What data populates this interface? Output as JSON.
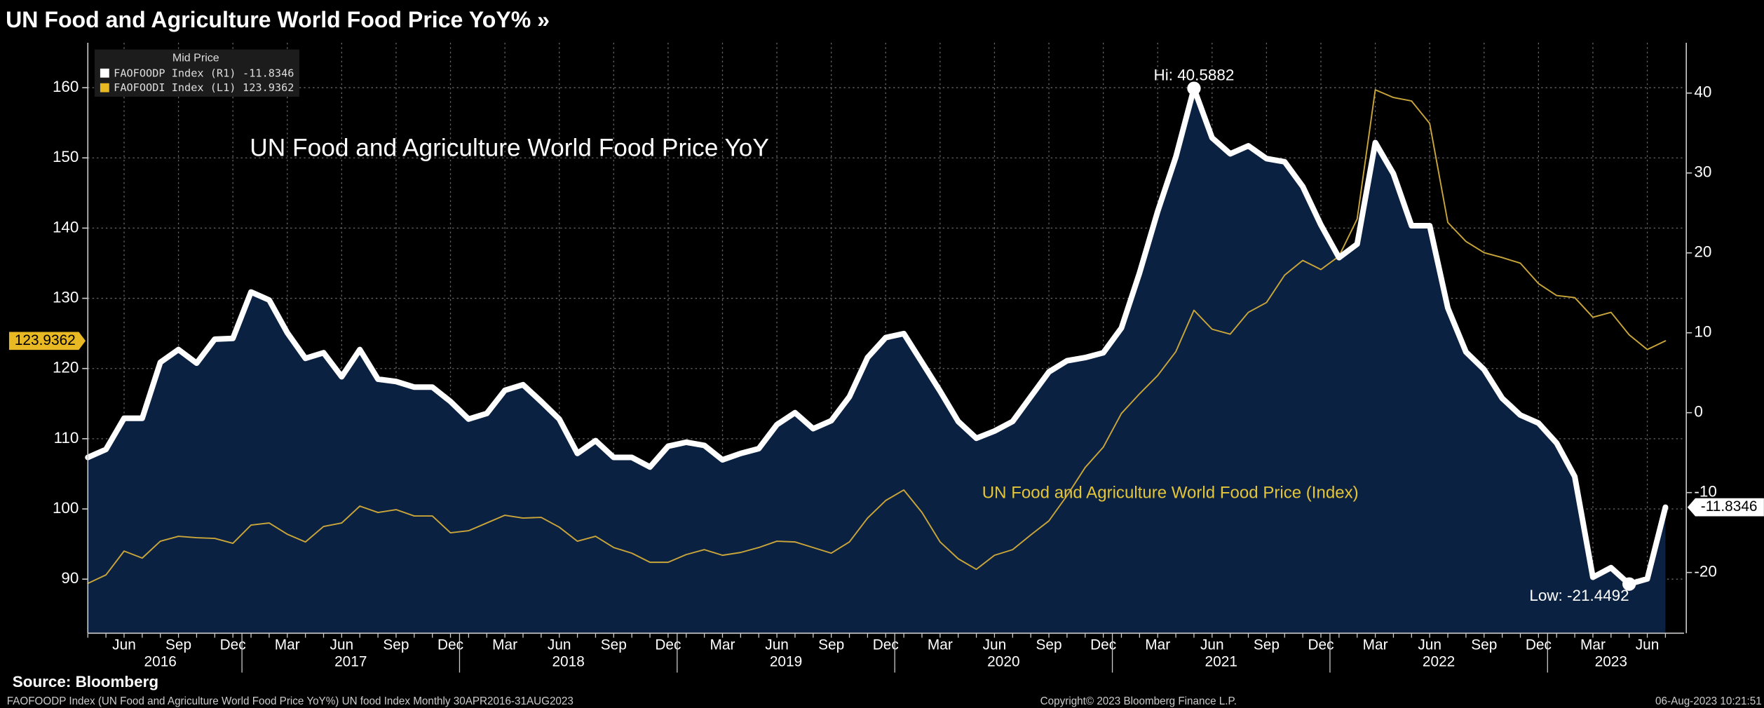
{
  "chart_data": {
    "type": "line",
    "title": "UN Food and Agriculture World Food Price YoY% »",
    "legend_title": "Mid Price",
    "annotations": {
      "main": "UN Food and Agriculture World Food Price YoY",
      "index": "UN Food and Agriculture World Food Price (Index)",
      "hi_label": "Hi: 40.5882",
      "low_label": "Low: -21.4492"
    },
    "source": "Source: Bloomberg",
    "footer": {
      "left": "FAOFOODP Index (UN Food and Agriculture World Food Price YoY%) UN food Index  Monthly 30APR2016-31AUG2023",
      "center": "Copyright© 2023 Bloomberg Finance L.P.",
      "right": "06-Aug-2023 10:21:51"
    },
    "x": [
      "2016-04",
      "2016-05",
      "2016-06",
      "2016-07",
      "2016-08",
      "2016-09",
      "2016-10",
      "2016-11",
      "2016-12",
      "2017-01",
      "2017-02",
      "2017-03",
      "2017-04",
      "2017-05",
      "2017-06",
      "2017-07",
      "2017-08",
      "2017-09",
      "2017-10",
      "2017-11",
      "2017-12",
      "2018-01",
      "2018-02",
      "2018-03",
      "2018-04",
      "2018-05",
      "2018-06",
      "2018-07",
      "2018-08",
      "2018-09",
      "2018-10",
      "2018-11",
      "2018-12",
      "2019-01",
      "2019-02",
      "2019-03",
      "2019-04",
      "2019-05",
      "2019-06",
      "2019-07",
      "2019-08",
      "2019-09",
      "2019-10",
      "2019-11",
      "2019-12",
      "2020-01",
      "2020-02",
      "2020-03",
      "2020-04",
      "2020-05",
      "2020-06",
      "2020-07",
      "2020-08",
      "2020-09",
      "2020-10",
      "2020-11",
      "2020-12",
      "2021-01",
      "2021-02",
      "2021-03",
      "2021-04",
      "2021-05",
      "2021-06",
      "2021-07",
      "2021-08",
      "2021-09",
      "2021-10",
      "2021-11",
      "2021-12",
      "2022-01",
      "2022-02",
      "2022-03",
      "2022-04",
      "2022-05",
      "2022-06",
      "2022-07",
      "2022-08",
      "2022-09",
      "2022-10",
      "2022-11",
      "2022-12",
      "2023-01",
      "2023-02",
      "2023-03",
      "2023-04",
      "2023-05",
      "2023-06",
      "2023-07"
    ],
    "xticks": [
      {
        "value": "2016-06",
        "label": "Jun"
      },
      {
        "value": "2016-09",
        "label": "Sep"
      },
      {
        "value": "2016-12",
        "label": "Dec"
      },
      {
        "value": "2017-03",
        "label": "Mar"
      },
      {
        "value": "2017-06",
        "label": "Jun"
      },
      {
        "value": "2017-09",
        "label": "Sep"
      },
      {
        "value": "2017-12",
        "label": "Dec"
      },
      {
        "value": "2018-03",
        "label": "Mar"
      },
      {
        "value": "2018-06",
        "label": "Jun"
      },
      {
        "value": "2018-09",
        "label": "Sep"
      },
      {
        "value": "2018-12",
        "label": "Dec"
      },
      {
        "value": "2019-03",
        "label": "Mar"
      },
      {
        "value": "2019-06",
        "label": "Jun"
      },
      {
        "value": "2019-09",
        "label": "Sep"
      },
      {
        "value": "2019-12",
        "label": "Dec"
      },
      {
        "value": "2020-03",
        "label": "Mar"
      },
      {
        "value": "2020-06",
        "label": "Jun"
      },
      {
        "value": "2020-09",
        "label": "Sep"
      },
      {
        "value": "2020-12",
        "label": "Dec"
      },
      {
        "value": "2021-03",
        "label": "Mar"
      },
      {
        "value": "2021-06",
        "label": "Jun"
      },
      {
        "value": "2021-09",
        "label": "Sep"
      },
      {
        "value": "2021-12",
        "label": "Dec"
      },
      {
        "value": "2022-03",
        "label": "Mar"
      },
      {
        "value": "2022-06",
        "label": "Jun"
      },
      {
        "value": "2022-09",
        "label": "Sep"
      },
      {
        "value": "2022-12",
        "label": "Dec"
      },
      {
        "value": "2023-03",
        "label": "Mar"
      },
      {
        "value": "2023-06",
        "label": "Jun"
      }
    ],
    "years": [
      "2016",
      "2017",
      "2018",
      "2019",
      "2020",
      "2021",
      "2022",
      "2023"
    ],
    "ylim": [
      82.3,
      166.4
    ],
    "yticks": [
      90,
      100,
      110,
      120,
      130,
      140,
      150,
      160
    ],
    "y2lim": [
      -27.6,
      46.3
    ],
    "y2ticks": [
      -20,
      -10,
      0,
      10,
      20,
      30,
      40
    ],
    "grid": true,
    "legend": "upper left",
    "series": [
      {
        "name": "FAOFOODP Index (R1)",
        "last_label": "-11.8346",
        "axis": "y2",
        "color": "#ffffff",
        "area_color": "#0b2142",
        "values": [
          -5.6,
          -4.6,
          -0.7,
          -0.7,
          6.3,
          7.9,
          6.2,
          9.2,
          9.3,
          15.1,
          14.1,
          10.0,
          6.8,
          7.5,
          4.5,
          7.9,
          4.2,
          3.9,
          3.2,
          3.2,
          1.4,
          -0.8,
          -0.1,
          2.8,
          3.5,
          1.4,
          -0.8,
          -5.1,
          -3.5,
          -5.6,
          -5.6,
          -6.8,
          -4.2,
          -3.7,
          -4.1,
          -5.9,
          -5.1,
          -4.5,
          -1.5,
          0,
          -2.0,
          -1.0,
          2.0,
          6.9,
          9.4,
          9.9,
          6.3,
          2.7,
          -1.1,
          -3.2,
          -2.3,
          -1.1,
          2.0,
          5.1,
          6.5,
          6.9,
          7.5,
          10.6,
          17.5,
          25.2,
          32.0,
          40.5882,
          34.4,
          32.4,
          33.4,
          31.8,
          31.4,
          28.3,
          23.5,
          19.4,
          21.1,
          33.8,
          29.9,
          23.4,
          23.4,
          13.1,
          7.6,
          5.4,
          1.8,
          -0.3,
          -1.3,
          -3.8,
          -8.0,
          -20.6,
          -19.4,
          -21.4492,
          -20.8,
          -11.8346
        ]
      },
      {
        "name": "FAOFOODI Index (L1)",
        "last_label": "123.9362",
        "axis": "y",
        "color": "#c9a53a",
        "values": [
          89.4,
          90.6,
          94.0,
          93.0,
          95.4,
          96.1,
          95.9,
          95.8,
          95.1,
          97.7,
          98.0,
          96.4,
          95.3,
          97.5,
          98.0,
          100.4,
          99.5,
          99.9,
          99.0,
          99.0,
          96.6,
          96.9,
          98.0,
          99.1,
          98.7,
          98.8,
          97.4,
          95.4,
          96.1,
          94.5,
          93.7,
          92.4,
          92.4,
          93.5,
          94.2,
          93.4,
          93.8,
          94.5,
          95.4,
          95.3,
          94.5,
          93.7,
          95.3,
          98.7,
          101.2,
          102.7,
          99.5,
          95.3,
          92.9,
          91.4,
          93.4,
          94.2,
          96.3,
          98.3,
          101.9,
          105.9,
          108.8,
          113.6,
          116.4,
          119.0,
          122.4,
          128.3,
          125.6,
          124.9,
          128.0,
          129.4,
          133.3,
          135.4,
          134.1,
          136.0,
          141.3,
          159.7,
          158.6,
          158.1,
          154.9,
          140.8,
          138.1,
          136.5,
          135.8,
          135.0,
          132.1,
          130.4,
          130.1,
          127.3,
          128.0,
          124.8,
          122.7,
          123.9362
        ]
      }
    ]
  }
}
